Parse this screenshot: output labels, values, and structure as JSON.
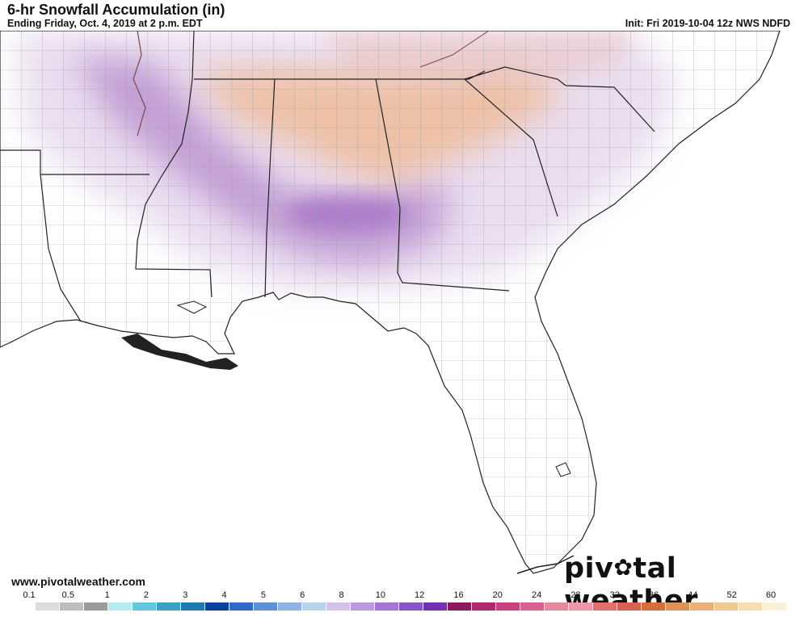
{
  "header": {
    "title": "6-hr Snowfall Accumulation (in)",
    "subtitle": "Ending Friday, Oct. 4, 2019 at 2 p.m. EDT",
    "init": "Init: Fri 2019-10-04 12z NWS NDFD"
  },
  "footer": {
    "url": "www.pivotalweather.com",
    "brand_left": "piv",
    "brand_right": "tal weather"
  },
  "legend": {
    "labels": [
      "0.1",
      "0.5",
      "1",
      "2",
      "3",
      "4",
      "5",
      "6",
      "8",
      "10",
      "12",
      "16",
      "20",
      "24",
      "28",
      "32",
      "36",
      "44",
      "52",
      "60"
    ],
    "colors": [
      "#ffffff",
      "#dcdcdc",
      "#bdbdbd",
      "#9a9a9a",
      "#b4ecf2",
      "#64c6dc",
      "#3aa0c4",
      "#1f7ab0",
      "#0d3f9e",
      "#3468c8",
      "#5f8fd6",
      "#8eb3e2",
      "#b9d2ee",
      "#d2c2ec",
      "#bb9ae0",
      "#a375d4",
      "#8a55c4",
      "#7232b0",
      "#8e1a5e",
      "#b0286e",
      "#c8407e",
      "#d8608e",
      "#e6889e",
      "#ec98aa",
      "#e36e6e",
      "#d86050",
      "#d4703e",
      "#de9256",
      "#e8b07a",
      "#f0c894",
      "#f6ddb4",
      "#faf0d8"
    ]
  }
}
